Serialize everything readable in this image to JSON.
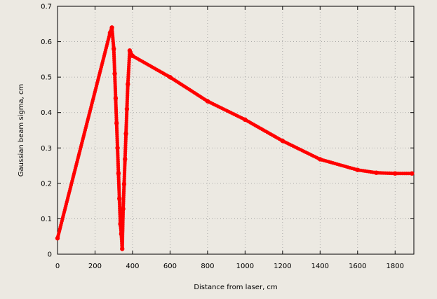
{
  "chart_data": {
    "type": "scatter",
    "title": "",
    "xlabel": "Distance from laser, cm",
    "ylabel": "Gaussian beam sigma, cm",
    "xlim": [
      0,
      1900
    ],
    "ylim": [
      0,
      0.7
    ],
    "x_ticks": [
      0,
      200,
      400,
      600,
      800,
      1000,
      1200,
      1400,
      1600,
      1800
    ],
    "y_ticks": [
      0,
      0.1,
      0.2,
      0.3,
      0.4,
      0.5,
      0.6,
      0.7
    ],
    "grid": true,
    "legend": "none",
    "series": [
      {
        "color": "#ff0000",
        "line": true,
        "marker": "circle",
        "x": [
          0,
          280,
          290,
          300,
          305,
          310,
          315,
          320,
          325,
          330,
          335,
          340,
          345,
          350,
          355,
          360,
          365,
          370,
          375,
          385,
          400,
          600,
          800,
          1000,
          1200,
          1400,
          1600,
          1700,
          1800,
          1890
        ],
        "y": [
          0.045,
          0.625,
          0.64,
          0.58,
          0.51,
          0.44,
          0.37,
          0.3,
          0.228,
          0.157,
          0.085,
          0.057,
          0.015,
          0.128,
          0.198,
          0.268,
          0.34,
          0.41,
          0.48,
          0.575,
          0.56,
          0.5,
          0.432,
          0.38,
          0.32,
          0.268,
          0.238,
          0.23,
          0.228,
          0.228
        ]
      }
    ]
  }
}
